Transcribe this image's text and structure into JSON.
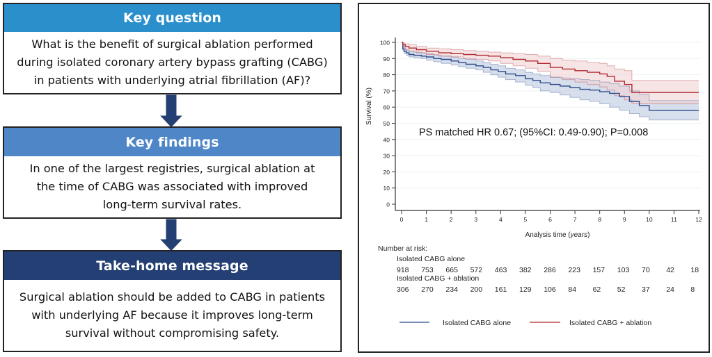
{
  "flow": {
    "sections": [
      {
        "header": "Key question",
        "header_color": "#2b8fcb",
        "body_lines": [
          "What is the benefit of surgical ablation performed",
          "during isolated coronary artery bypass grafting (CABG)",
          "in patients with underlying atrial fibrillation (AF)?"
        ]
      },
      {
        "header": "Key findings",
        "header_color": "#4f86c7",
        "body_lines": [
          "In one of the largest registries, surgical ablation at",
          "the time of CABG was associated with improved",
          "long-term survival rates."
        ]
      },
      {
        "header": "Take-home message",
        "header_color": "#243f73",
        "body_lines": [
          "Surgical ablation should be added to CABG in patients",
          "with underlying AF because it improves long-term",
          "survival without compromising safety."
        ]
      }
    ],
    "arrow_color": "#243f73"
  },
  "chart_data": {
    "type": "line",
    "title": "",
    "annotation": "PS matched HR 0.67; (95%CI: 0.49-0.90); P=0.008",
    "xlabel": "Analysis time",
    "xlabel_unit": "years",
    "ylabel": "Survival (%)",
    "xlim": [
      0,
      12
    ],
    "ylim": [
      0,
      100
    ],
    "x_ticks": [
      0,
      1,
      2,
      3,
      4,
      5,
      6,
      7,
      8,
      9,
      10,
      11,
      12
    ],
    "y_ticks": [
      0,
      10,
      20,
      30,
      40,
      50,
      60,
      70,
      80,
      90,
      100
    ],
    "grid": true,
    "series": [
      {
        "name": "Isolated CABG alone",
        "color": "#2b4a8a",
        "band_color": "#c9d3e6",
        "step": true,
        "x": [
          0,
          0.05,
          0.1,
          0.2,
          0.3,
          0.5,
          0.8,
          1.0,
          1.3,
          1.6,
          2.0,
          2.3,
          2.6,
          3.0,
          3.3,
          3.6,
          3.9,
          4.2,
          4.6,
          5.0,
          5.3,
          5.6,
          6.0,
          6.4,
          6.8,
          7.2,
          7.6,
          8.0,
          8.4,
          8.8,
          9.2,
          9.6,
          10.0,
          12.0
        ],
        "y": [
          100,
          96,
          94.5,
          93.5,
          92.5,
          92,
          91.5,
          91,
          90,
          89.5,
          88.5,
          87.5,
          86.5,
          85.5,
          84.5,
          83,
          82,
          80.5,
          79.5,
          77.5,
          76.5,
          75,
          74,
          73,
          72,
          71,
          70.5,
          69.5,
          68.5,
          66.5,
          63.5,
          61,
          58,
          58
        ],
        "lower": [
          100,
          95,
          93,
          92,
          91,
          90.5,
          90,
          89,
          88,
          87,
          86,
          85,
          84,
          83,
          81.5,
          80,
          78.5,
          77,
          75.5,
          73.5,
          72,
          70,
          69,
          67.5,
          66,
          64.5,
          63.5,
          62,
          60,
          58,
          56,
          54,
          52,
          52
        ],
        "upper": [
          100,
          97.5,
          96,
          95,
          94.5,
          94,
          93.5,
          93,
          92,
          91.5,
          91,
          90,
          89.5,
          88.5,
          87.5,
          86.5,
          85.5,
          84,
          83,
          81.5,
          80.5,
          79.5,
          78.5,
          78,
          77.5,
          77,
          76.5,
          75.5,
          74.5,
          73,
          70,
          68,
          64,
          64
        ]
      },
      {
        "name": "Isolated CABG + ablation",
        "color": "#b02a30",
        "band_color": "#f2d4d6",
        "step": true,
        "x": [
          0,
          0.05,
          0.15,
          0.3,
          0.6,
          1.0,
          1.5,
          2.0,
          2.5,
          3.0,
          3.5,
          4.0,
          4.5,
          5.0,
          5.5,
          6.0,
          6.5,
          7.0,
          7.5,
          8.0,
          8.3,
          8.6,
          9.0,
          9.3,
          12.0
        ],
        "y": [
          100,
          98.5,
          97.5,
          96.5,
          95.5,
          94.5,
          93.5,
          93,
          92.5,
          92,
          91.5,
          90.5,
          89.5,
          88.5,
          87,
          84.5,
          83.5,
          82.5,
          81.5,
          80.5,
          79,
          76,
          74,
          69,
          69
        ],
        "lower": [
          100,
          97,
          95.5,
          94.5,
          93.5,
          92.5,
          91.5,
          91,
          90,
          89.5,
          88.5,
          87,
          85.5,
          84,
          82,
          78.5,
          77,
          75.5,
          74,
          72.5,
          70.5,
          67,
          64.5,
          62,
          62
        ],
        "upper": [
          100,
          99.5,
          99,
          98.5,
          97.5,
          96.5,
          96,
          95.5,
          95,
          94.5,
          94,
          93.5,
          93,
          92.5,
          91.5,
          90,
          89,
          88.5,
          87.5,
          87,
          85.5,
          83.5,
          82.5,
          76.5,
          76.5
        ]
      }
    ],
    "risk_table": {
      "title": "Number at risk:",
      "rows": [
        {
          "label": "Isolated CABG alone",
          "values": [
            918,
            753,
            665,
            572,
            463,
            382,
            286,
            223,
            157,
            103,
            70,
            42,
            18
          ]
        },
        {
          "label": "Isolated CABG + ablation",
          "values": [
            306,
            270,
            234,
            200,
            161,
            129,
            106,
            84,
            62,
            52,
            37,
            24,
            8
          ]
        }
      ]
    },
    "legend": {
      "placement": "bottom",
      "entries": [
        "Isolated CABG alone",
        "Isolated CABG + ablation"
      ]
    }
  }
}
